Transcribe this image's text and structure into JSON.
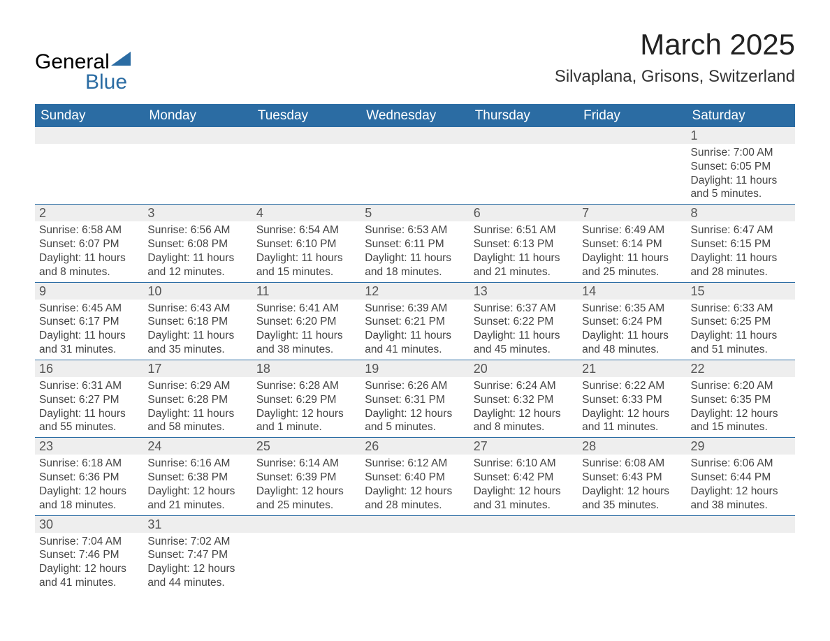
{
  "logo": {
    "text_top": "General",
    "text_bottom": "Blue",
    "triangle_color": "#2b6ca3"
  },
  "title": "March 2025",
  "location": "Silvaplana, Grisons, Switzerland",
  "colors": {
    "header_bg": "#2b6ca3",
    "header_text": "#ffffff",
    "daynum_bg": "#eeeeee",
    "border": "#2b6ca3",
    "body_text": "#444444"
  },
  "typography": {
    "title_fontsize": 42,
    "location_fontsize": 24,
    "th_fontsize": 19,
    "cell_fontsize": 15.5
  },
  "weekdays": [
    "Sunday",
    "Monday",
    "Tuesday",
    "Wednesday",
    "Thursday",
    "Friday",
    "Saturday"
  ],
  "weeks": [
    [
      null,
      null,
      null,
      null,
      null,
      null,
      {
        "n": "1",
        "sr": "Sunrise: 7:00 AM",
        "ss": "Sunset: 6:05 PM",
        "dl": "Daylight: 11 hours and 5 minutes."
      }
    ],
    [
      {
        "n": "2",
        "sr": "Sunrise: 6:58 AM",
        "ss": "Sunset: 6:07 PM",
        "dl": "Daylight: 11 hours and 8 minutes."
      },
      {
        "n": "3",
        "sr": "Sunrise: 6:56 AM",
        "ss": "Sunset: 6:08 PM",
        "dl": "Daylight: 11 hours and 12 minutes."
      },
      {
        "n": "4",
        "sr": "Sunrise: 6:54 AM",
        "ss": "Sunset: 6:10 PM",
        "dl": "Daylight: 11 hours and 15 minutes."
      },
      {
        "n": "5",
        "sr": "Sunrise: 6:53 AM",
        "ss": "Sunset: 6:11 PM",
        "dl": "Daylight: 11 hours and 18 minutes."
      },
      {
        "n": "6",
        "sr": "Sunrise: 6:51 AM",
        "ss": "Sunset: 6:13 PM",
        "dl": "Daylight: 11 hours and 21 minutes."
      },
      {
        "n": "7",
        "sr": "Sunrise: 6:49 AM",
        "ss": "Sunset: 6:14 PM",
        "dl": "Daylight: 11 hours and 25 minutes."
      },
      {
        "n": "8",
        "sr": "Sunrise: 6:47 AM",
        "ss": "Sunset: 6:15 PM",
        "dl": "Daylight: 11 hours and 28 minutes."
      }
    ],
    [
      {
        "n": "9",
        "sr": "Sunrise: 6:45 AM",
        "ss": "Sunset: 6:17 PM",
        "dl": "Daylight: 11 hours and 31 minutes."
      },
      {
        "n": "10",
        "sr": "Sunrise: 6:43 AM",
        "ss": "Sunset: 6:18 PM",
        "dl": "Daylight: 11 hours and 35 minutes."
      },
      {
        "n": "11",
        "sr": "Sunrise: 6:41 AM",
        "ss": "Sunset: 6:20 PM",
        "dl": "Daylight: 11 hours and 38 minutes."
      },
      {
        "n": "12",
        "sr": "Sunrise: 6:39 AM",
        "ss": "Sunset: 6:21 PM",
        "dl": "Daylight: 11 hours and 41 minutes."
      },
      {
        "n": "13",
        "sr": "Sunrise: 6:37 AM",
        "ss": "Sunset: 6:22 PM",
        "dl": "Daylight: 11 hours and 45 minutes."
      },
      {
        "n": "14",
        "sr": "Sunrise: 6:35 AM",
        "ss": "Sunset: 6:24 PM",
        "dl": "Daylight: 11 hours and 48 minutes."
      },
      {
        "n": "15",
        "sr": "Sunrise: 6:33 AM",
        "ss": "Sunset: 6:25 PM",
        "dl": "Daylight: 11 hours and 51 minutes."
      }
    ],
    [
      {
        "n": "16",
        "sr": "Sunrise: 6:31 AM",
        "ss": "Sunset: 6:27 PM",
        "dl": "Daylight: 11 hours and 55 minutes."
      },
      {
        "n": "17",
        "sr": "Sunrise: 6:29 AM",
        "ss": "Sunset: 6:28 PM",
        "dl": "Daylight: 11 hours and 58 minutes."
      },
      {
        "n": "18",
        "sr": "Sunrise: 6:28 AM",
        "ss": "Sunset: 6:29 PM",
        "dl": "Daylight: 12 hours and 1 minute."
      },
      {
        "n": "19",
        "sr": "Sunrise: 6:26 AM",
        "ss": "Sunset: 6:31 PM",
        "dl": "Daylight: 12 hours and 5 minutes."
      },
      {
        "n": "20",
        "sr": "Sunrise: 6:24 AM",
        "ss": "Sunset: 6:32 PM",
        "dl": "Daylight: 12 hours and 8 minutes."
      },
      {
        "n": "21",
        "sr": "Sunrise: 6:22 AM",
        "ss": "Sunset: 6:33 PM",
        "dl": "Daylight: 12 hours and 11 minutes."
      },
      {
        "n": "22",
        "sr": "Sunrise: 6:20 AM",
        "ss": "Sunset: 6:35 PM",
        "dl": "Daylight: 12 hours and 15 minutes."
      }
    ],
    [
      {
        "n": "23",
        "sr": "Sunrise: 6:18 AM",
        "ss": "Sunset: 6:36 PM",
        "dl": "Daylight: 12 hours and 18 minutes."
      },
      {
        "n": "24",
        "sr": "Sunrise: 6:16 AM",
        "ss": "Sunset: 6:38 PM",
        "dl": "Daylight: 12 hours and 21 minutes."
      },
      {
        "n": "25",
        "sr": "Sunrise: 6:14 AM",
        "ss": "Sunset: 6:39 PM",
        "dl": "Daylight: 12 hours and 25 minutes."
      },
      {
        "n": "26",
        "sr": "Sunrise: 6:12 AM",
        "ss": "Sunset: 6:40 PM",
        "dl": "Daylight: 12 hours and 28 minutes."
      },
      {
        "n": "27",
        "sr": "Sunrise: 6:10 AM",
        "ss": "Sunset: 6:42 PM",
        "dl": "Daylight: 12 hours and 31 minutes."
      },
      {
        "n": "28",
        "sr": "Sunrise: 6:08 AM",
        "ss": "Sunset: 6:43 PM",
        "dl": "Daylight: 12 hours and 35 minutes."
      },
      {
        "n": "29",
        "sr": "Sunrise: 6:06 AM",
        "ss": "Sunset: 6:44 PM",
        "dl": "Daylight: 12 hours and 38 minutes."
      }
    ],
    [
      {
        "n": "30",
        "sr": "Sunrise: 7:04 AM",
        "ss": "Sunset: 7:46 PM",
        "dl": "Daylight: 12 hours and 41 minutes."
      },
      {
        "n": "31",
        "sr": "Sunrise: 7:02 AM",
        "ss": "Sunset: 7:47 PM",
        "dl": "Daylight: 12 hours and 44 minutes."
      },
      null,
      null,
      null,
      null,
      null
    ]
  ]
}
